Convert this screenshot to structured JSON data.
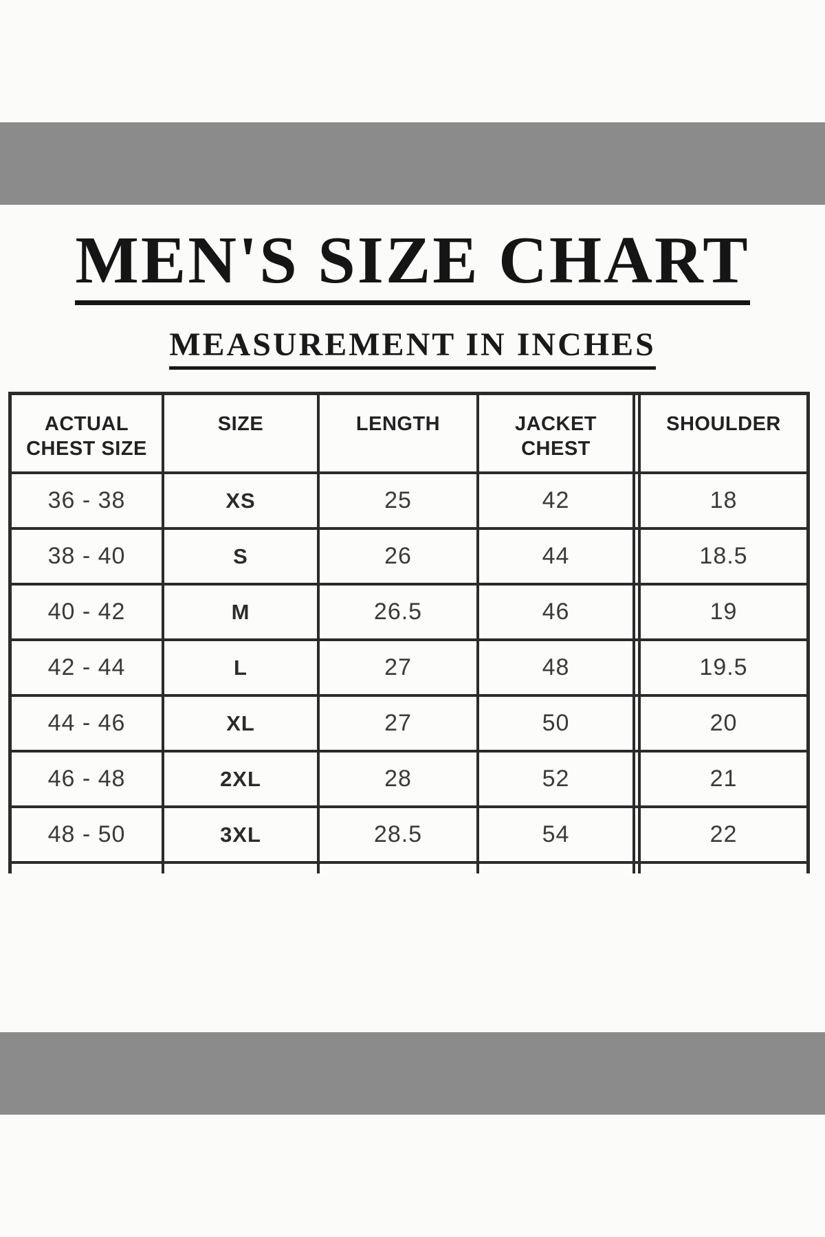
{
  "page": {
    "title": "MEN'S SIZE CHART",
    "subtitle": "MEASUREMENT IN INCHES"
  },
  "table": {
    "headers": [
      [
        "ACTUAL",
        "CHEST SIZE"
      ],
      [
        "SIZE"
      ],
      [
        "LENGTH"
      ],
      [
        "JACKET",
        "CHEST"
      ],
      [
        "SHOULDER"
      ]
    ],
    "rows": [
      [
        "36 - 38",
        "XS",
        "25",
        "42",
        "18"
      ],
      [
        "38 - 40",
        "S",
        "26",
        "44",
        "18.5"
      ],
      [
        "40 - 42",
        "M",
        "26.5",
        "46",
        "19"
      ],
      [
        "42 - 44",
        "L",
        "27",
        "48",
        "19.5"
      ],
      [
        "44 - 46",
        "XL",
        "27",
        "50",
        "20"
      ],
      [
        "46 - 48",
        "2XL",
        "28",
        "52",
        "21"
      ],
      [
        "48 - 50",
        "3XL",
        "28.5",
        "54",
        "22"
      ]
    ]
  },
  "colors": {
    "banner_gray": "#8b8b8b",
    "grid_line": "#2b2b2b",
    "title_text": "#151515",
    "body_text": "#3a3a3a"
  }
}
